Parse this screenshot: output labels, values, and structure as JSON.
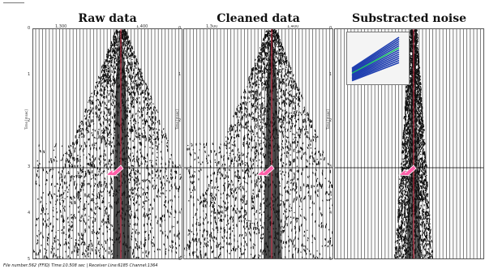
{
  "panels": [
    {
      "title": "Raw data",
      "cdp_labels": [
        "1,300",
        "1,400"
      ],
      "y_axis_title": "Time [msec]",
      "time_ticks": [
        "0",
        "1",
        "2",
        "3",
        "4",
        "5"
      ],
      "noise_type": "cone",
      "has_inset": false
    },
    {
      "title": "Cleaned data",
      "cdp_labels": [
        "1,300",
        "1,400"
      ],
      "y_axis_title": "Time [msec]",
      "time_ticks": [
        "0",
        "1",
        "2",
        "3",
        "4",
        "5"
      ],
      "noise_type": "cone",
      "has_inset": false
    },
    {
      "title": "Substracted noise",
      "cdp_labels": [],
      "y_axis_title": "Time [msec]",
      "time_ticks": [
        "0",
        "1",
        "2",
        "3",
        "4",
        "5"
      ],
      "noise_type": "column",
      "has_inset": true
    }
  ],
  "status_bar": "File number:562 (FFID) Time:10.508 sec | Receiver Line:6185 Channel:1364",
  "colors": {
    "trace_ink": "#111111",
    "red_line": "#e0304a",
    "grid_line": "#6e6e6e",
    "arrow_pink": "#ff5fa8",
    "arrow_outline": "#ffffff",
    "inset_blue": "#1f3fb0",
    "inset_green": "#1dbf6a"
  },
  "icons": {
    "arrow": "pink-pointer-arrow-icon"
  }
}
